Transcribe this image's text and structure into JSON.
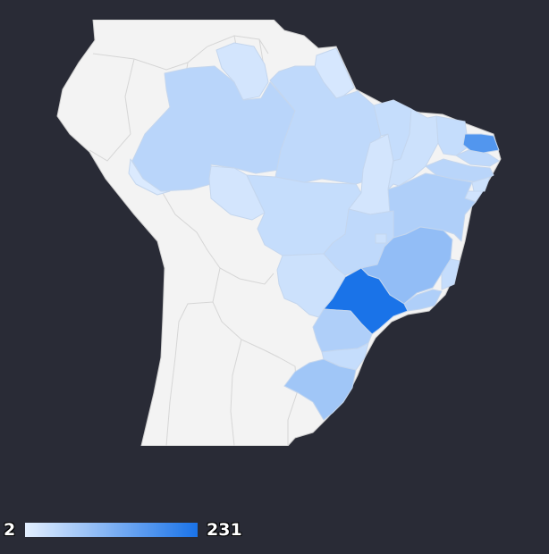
{
  "map": {
    "region": "Brazil",
    "colors": {
      "background": "#292b36",
      "land": "#f3f3f3",
      "border": "#cfcfcf",
      "scale_low": "#e3efff",
      "scale_high": "#1a73e8"
    },
    "states": [
      {
        "id": "amazonas",
        "value": 30
      },
      {
        "id": "para",
        "value": 25
      },
      {
        "id": "roraima",
        "value": 10
      },
      {
        "id": "amapa",
        "value": 8
      },
      {
        "id": "acre",
        "value": 5
      },
      {
        "id": "rondonia",
        "value": 10
      },
      {
        "id": "mato-grosso",
        "value": 20
      },
      {
        "id": "tocantins",
        "value": 10
      },
      {
        "id": "maranhao",
        "value": 20
      },
      {
        "id": "piaui",
        "value": 15
      },
      {
        "id": "ceara",
        "value": 20
      },
      {
        "id": "rio-grande-do-norte",
        "value": 150
      },
      {
        "id": "paraiba",
        "value": 25
      },
      {
        "id": "pernambuco",
        "value": 30
      },
      {
        "id": "alagoas",
        "value": 15
      },
      {
        "id": "sergipe",
        "value": 12
      },
      {
        "id": "bahia",
        "value": 40
      },
      {
        "id": "goias",
        "value": 25
      },
      {
        "id": "distrito-federal",
        "value": 15
      },
      {
        "id": "mato-grosso-do-sul",
        "value": 15
      },
      {
        "id": "minas-gerais",
        "value": 70
      },
      {
        "id": "espirito-santo",
        "value": 20
      },
      {
        "id": "rio-de-janeiro",
        "value": 40
      },
      {
        "id": "sao-paulo",
        "value": 231
      },
      {
        "id": "parana",
        "value": 40
      },
      {
        "id": "santa-catarina",
        "value": 20
      },
      {
        "id": "rio-grande-do-sul",
        "value": 55
      }
    ]
  },
  "legend": {
    "min_label": "2",
    "max_label": "231",
    "min_value": 2,
    "max_value": 231
  }
}
